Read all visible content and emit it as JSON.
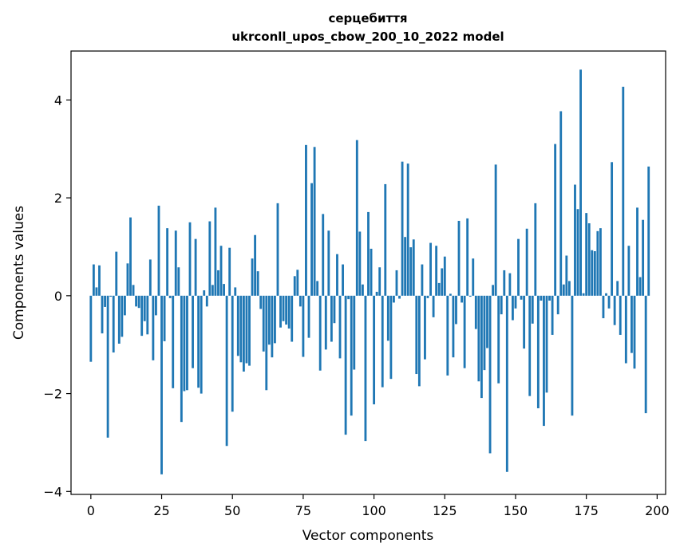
{
  "chart_data": {
    "type": "bar",
    "title": "серцебиття",
    "subtitle": "ukrconll_upos_cbow_200_10_2022 model",
    "xlabel": "Vector components",
    "ylabel": "Components values",
    "xlim": [
      -7,
      203
    ],
    "ylim": [
      -4.06,
      5.0
    ],
    "xticks": [
      0,
      25,
      50,
      75,
      100,
      125,
      150,
      175,
      200
    ],
    "xtick_labels": [
      "0",
      "25",
      "50",
      "75",
      "100",
      "125",
      "150",
      "175",
      "200"
    ],
    "yticks": [
      -4,
      -2,
      0,
      2,
      4
    ],
    "ytick_labels": [
      "−4",
      "−2",
      "0",
      "2",
      "4"
    ],
    "grid": false,
    "legend": "none",
    "bar_color": "#1f77b4",
    "values": [
      -1.35,
      0.64,
      0.17,
      0.62,
      -0.77,
      -0.23,
      -2.9,
      -0.02,
      -1.16,
      0.9,
      -0.98,
      -0.84,
      -0.4,
      0.66,
      1.6,
      0.22,
      -0.22,
      -0.25,
      -0.82,
      -0.52,
      -0.79,
      0.74,
      -1.32,
      -0.4,
      1.84,
      -3.65,
      -0.93,
      1.38,
      -0.05,
      -1.89,
      1.33,
      0.58,
      -2.58,
      -1.95,
      -1.93,
      1.5,
      -1.48,
      1.16,
      -1.88,
      -2.0,
      0.11,
      -0.22,
      1.52,
      0.22,
      1.8,
      0.52,
      1.02,
      0.24,
      -3.07,
      0.98,
      -2.37,
      0.17,
      -1.23,
      -1.36,
      -1.55,
      -1.38,
      -1.43,
      0.76,
      1.24,
      0.5,
      -0.27,
      -1.14,
      -1.93,
      -1.0,
      -1.26,
      -0.97,
      1.89,
      -0.65,
      -0.52,
      -0.59,
      -0.67,
      -0.94,
      0.4,
      0.53,
      -0.22,
      -1.25,
      3.08,
      -0.86,
      2.3,
      3.04,
      0.3,
      -1.53,
      1.67,
      -1.1,
      1.33,
      -0.94,
      -0.56,
      0.85,
      -1.28,
      0.64,
      -2.84,
      -0.07,
      -2.45,
      -1.51,
      3.18,
      1.31,
      0.23,
      -2.97,
      1.71,
      0.96,
      -2.22,
      0.08,
      0.58,
      -1.87,
      2.28,
      -0.92,
      -1.7,
      -0.14,
      0.52,
      -0.06,
      2.74,
      1.2,
      2.7,
      0.99,
      1.15,
      -1.6,
      -1.85,
      0.64,
      -1.3,
      -0.05,
      1.08,
      -0.44,
      1.02,
      0.26,
      0.56,
      0.8,
      -1.63,
      0.04,
      -1.26,
      -0.58,
      1.53,
      -0.14,
      -1.48,
      1.58,
      -0.02,
      0.76,
      -0.68,
      -1.75,
      -2.09,
      -1.52,
      -1.07,
      -3.22,
      0.22,
      2.68,
      -1.79,
      -0.38,
      0.52,
      -3.6,
      0.46,
      -0.5,
      -0.26,
      1.16,
      -0.08,
      -1.08,
      1.37,
      -2.05,
      -0.57,
      1.89,
      -2.3,
      -0.1,
      -2.66,
      -1.98,
      -0.1,
      -0.8,
      3.1,
      -0.38,
      3.77,
      0.23,
      0.82,
      0.3,
      -2.45,
      2.27,
      1.77,
      4.62,
      0.05,
      1.69,
      1.48,
      0.93,
      0.91,
      1.32,
      1.38,
      -0.46,
      0.05,
      -0.26,
      2.73,
      -0.6,
      0.3,
      -0.8,
      4.27,
      -1.38,
      1.02,
      -1.17,
      -1.49,
      1.8,
      0.38,
      1.55,
      -2.4,
      2.64
    ]
  }
}
